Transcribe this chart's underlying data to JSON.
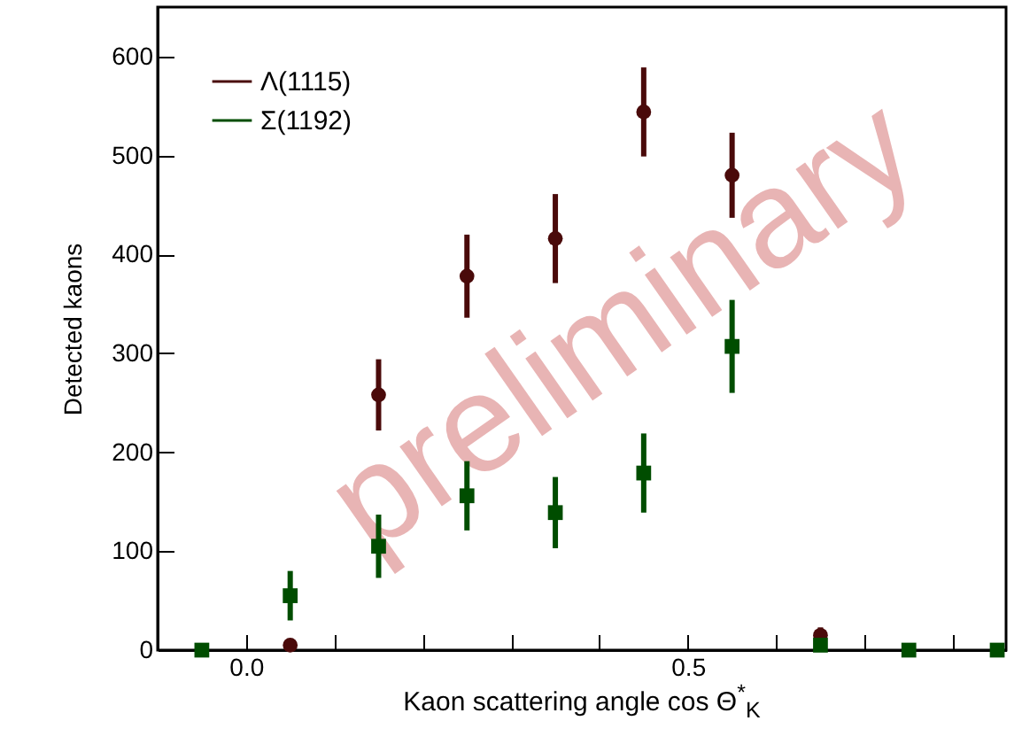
{
  "chart_data": {
    "type": "scatter",
    "xlabel": "Kaon scattering angle cos Θ$^{*}$$_{K}$",
    "ylabel": "Detected kaons",
    "annotations": [
      "preliminary"
    ],
    "xlim": [
      -0.1,
      0.86
    ],
    "ylim": [
      0,
      650
    ],
    "xticks": [
      {
        "value": -0.1,
        "label": null
      },
      {
        "value": 0,
        "label": "0.0"
      },
      {
        "value": 0.1,
        "label": null
      },
      {
        "value": 0.2,
        "label": null
      },
      {
        "value": 0.3,
        "label": null
      },
      {
        "value": 0.4,
        "label": null
      },
      {
        "value": 0.5,
        "label": "0.5"
      },
      {
        "value": 0.6,
        "label": null
      },
      {
        "value": 0.7,
        "label": null
      },
      {
        "value": 0.8,
        "label": null
      }
    ],
    "yticks": [
      0,
      100,
      200,
      300,
      400,
      500,
      600
    ],
    "grid": false,
    "legend": "top left",
    "series": [
      {
        "name": "Λ(1115)",
        "color": "#4a0a0a",
        "marker": "circle",
        "x": [
          0.05,
          0.15,
          0.25,
          0.35,
          0.45,
          0.55,
          0.65
        ],
        "values": [
          5,
          258,
          378,
          416,
          544,
          480,
          15
        ],
        "errors": [
          null,
          36,
          42,
          45,
          45,
          43,
          8
        ]
      },
      {
        "name": "Σ(1192)",
        "color": "#004d00",
        "marker": "square",
        "x": [
          -0.05,
          0.05,
          0.15,
          0.25,
          0.35,
          0.45,
          0.55,
          0.65,
          0.75,
          0.85
        ],
        "values": [
          0,
          55,
          105,
          156,
          139,
          179,
          307,
          5,
          0,
          0
        ],
        "errors": [
          null,
          25,
          32,
          35,
          36,
          40,
          47,
          null,
          null,
          null
        ]
      }
    ]
  }
}
